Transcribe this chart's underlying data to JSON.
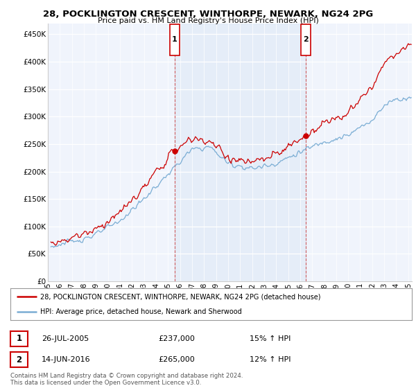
{
  "title": "28, POCKLINGTON CRESCENT, WINTHORPE, NEWARK, NG24 2PG",
  "subtitle": "Price paid vs. HM Land Registry's House Price Index (HPI)",
  "ytick_values": [
    0,
    50000,
    100000,
    150000,
    200000,
    250000,
    300000,
    350000,
    400000,
    450000
  ],
  "ylim": [
    0,
    470000
  ],
  "xlim_start": 1995.3,
  "xlim_end": 2025.3,
  "background_color": "#ffffff",
  "plot_bg_color": "#dde8f5",
  "plot_bg_color_main": "#f0f4fc",
  "grid_color": "#ffffff",
  "sale1_x": 2005.55,
  "sale1_y": 237000,
  "sale2_x": 2016.45,
  "sale2_y": 265000,
  "sale1_label": "1",
  "sale2_label": "2",
  "legend_line1": "28, POCKLINGTON CRESCENT, WINTHORPE, NEWARK, NG24 2PG (detached house)",
  "legend_line2": "HPI: Average price, detached house, Newark and Sherwood",
  "annotation1_date": "26-JUL-2005",
  "annotation1_price": "£237,000",
  "annotation1_hpi": "15% ↑ HPI",
  "annotation2_date": "14-JUN-2016",
  "annotation2_price": "£265,000",
  "annotation2_hpi": "12% ↑ HPI",
  "footer": "Contains HM Land Registry data © Crown copyright and database right 2024.\nThis data is licensed under the Open Government Licence v3.0.",
  "red_color": "#cc0000",
  "blue_color": "#7aadd4",
  "dashed_color": "#cc4444"
}
